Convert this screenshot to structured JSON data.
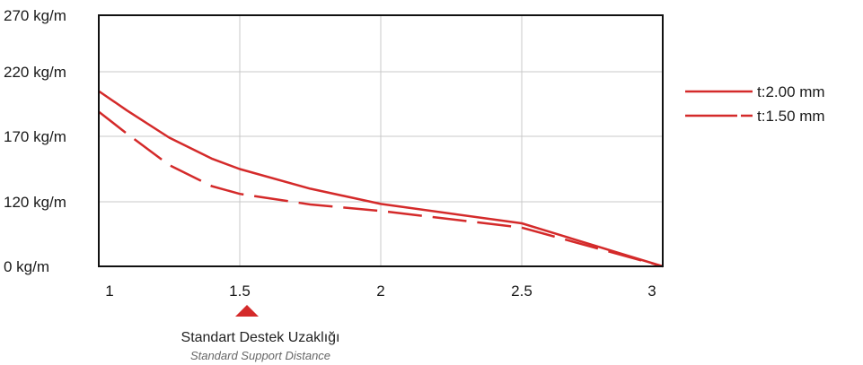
{
  "chart_data": {
    "type": "line",
    "title": "",
    "xlabel": "",
    "ylabel": "",
    "xlim": [
      1,
      3
    ],
    "ylim_labels": [
      "0 kg/m",
      "120 kg/m",
      "170 kg/m",
      "220 kg/m",
      "270 kg/m"
    ],
    "y_ticks": [
      0,
      120,
      170,
      220,
      270
    ],
    "x_ticks": [
      "1",
      "1.5",
      "2",
      "2.5",
      "3"
    ],
    "grid": true,
    "legend_position": "right",
    "series": [
      {
        "name": "t:2.00 mm",
        "style": "solid",
        "color": "#d42a2a",
        "x": [
          1,
          1.1,
          1.25,
          1.4,
          1.5,
          1.75,
          2,
          2.5,
          3
        ],
        "y": [
          205,
          190,
          169,
          153,
          145,
          130,
          116,
          80,
          0
        ]
      },
      {
        "name": "t:1.50 mm",
        "style": "dashed",
        "color": "#d42a2a",
        "x": [
          1,
          1.1,
          1.25,
          1.4,
          1.5,
          1.75,
          2,
          2.5,
          3
        ],
        "y": [
          189,
          172,
          148,
          132,
          126,
          115,
          103,
          72,
          0
        ]
      }
    ],
    "marker": {
      "x": 1.5,
      "label_tr": "Standart Destek Uzaklığı",
      "label_en": "Standard Support Distance",
      "color": "#d42a2a"
    }
  }
}
